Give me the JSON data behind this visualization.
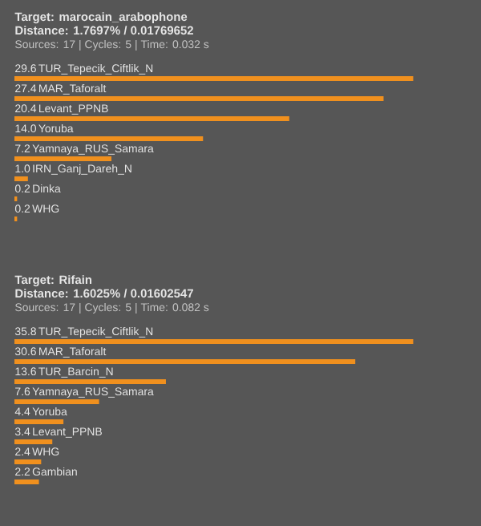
{
  "chart_data": [
    {
      "type": "bar",
      "orientation": "horizontal",
      "title": "Target: marocain_arabophone",
      "subtitle": "Distance: 1.7697% / 0.01769652",
      "annotations": [
        "Sources: 17 | Cycles: 5 | Time: 0.032 s"
      ],
      "categories": [
        "TUR_Tepecik_Ciftlik_N",
        "MAR_Taforalt",
        "Levant_PPNB",
        "Yoruba",
        "Yamnaya_RUS_Samara",
        "IRN_Ganj_Dareh_N",
        "Dinka",
        "WHG"
      ],
      "values": [
        29.6,
        27.4,
        20.4,
        14.0,
        7.2,
        1.0,
        0.2,
        0.2
      ],
      "value_labels": [
        "29.6",
        "27.4",
        "20.4",
        "14.0",
        "7.2",
        "1.0",
        "0.2",
        "0.2"
      ],
      "color": "#f0901e"
    },
    {
      "type": "bar",
      "orientation": "horizontal",
      "title": "Target: Rifain",
      "subtitle": "Distance: 1.6025% / 0.01602547",
      "annotations": [
        "Sources: 17 | Cycles: 5 | Time: 0.082 s"
      ],
      "categories": [
        "TUR_Tepecik_Ciftlik_N",
        "MAR_Taforalt",
        "TUR_Barcin_N",
        "Yamnaya_RUS_Samara",
        "Yoruba",
        "Levant_PPNB",
        "WHG",
        "Gambian"
      ],
      "values": [
        35.8,
        30.6,
        13.6,
        7.6,
        4.4,
        3.4,
        2.4,
        2.2
      ],
      "value_labels": [
        "35.8",
        "30.6",
        "13.6",
        "7.6",
        "4.4",
        "3.4",
        "2.4",
        "2.2"
      ],
      "color": "#f0901e"
    }
  ]
}
